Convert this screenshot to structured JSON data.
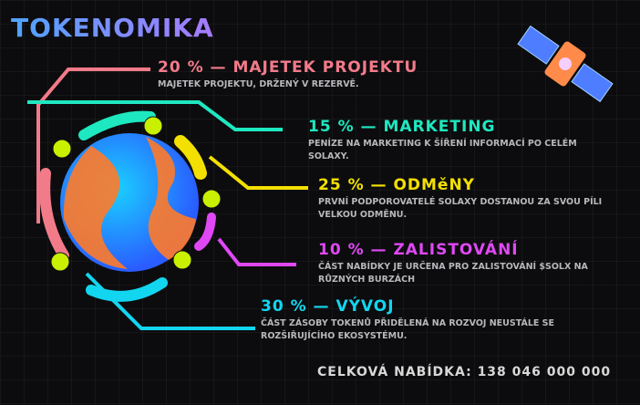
{
  "title": "TOKENOMIKA",
  "allocations": [
    {
      "percent": "20 %",
      "label": "MAJETEK PROJEKTU",
      "heading": "20 % — MAJETEK PROJEKTU",
      "description": "Majetek projektu, držený v rezervě.",
      "color": "#f27b8a"
    },
    {
      "percent": "15 %",
      "label": "MARKETING",
      "heading": "15 % — MARKETING",
      "description": "Peníze na marketing k šíření informací po celém Solaxy.",
      "color": "#1ee8c0"
    },
    {
      "percent": "25 %",
      "label": "ODMěNY",
      "heading": "25 % — ODMěNY",
      "description": "První podporovatelé Solaxy dostanou za svou píli velkou odměnu.",
      "color": "#f3e000"
    },
    {
      "percent": "10 %",
      "label": "ZALISTOVÁNÍ",
      "heading": "10 % — ZALISTOVÁNÍ",
      "description": "Část nabídky je určena pro zalistování $SOLX na různých burzách",
      "color": "#e048f5"
    },
    {
      "percent": "30 %",
      "label": "VÝVOJ",
      "heading": "30 % — VÝVOJ",
      "description": "Část zásoby tokenů přidělená na rozvoj neustále se rozšiřujícího ekosystému.",
      "color": "#12d6f0"
    }
  ],
  "total": "CELKOVÁ NABÍDKA: 138 046 000 000",
  "icons": [
    "planet-icon",
    "satellite-icon",
    "alien-icon"
  ]
}
